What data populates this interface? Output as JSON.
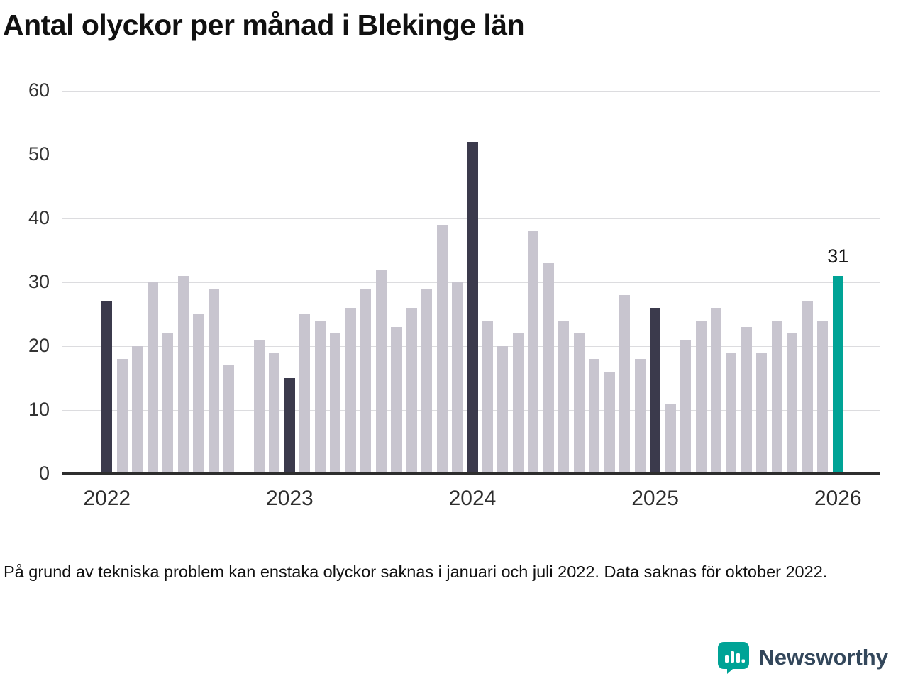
{
  "title": "Antal olyckor per månad i Blekinge län",
  "footnote": "På grund av tekniska problem kan enstaka olyckor saknas i januari och juli 2022. Data saknas för oktober 2022.",
  "branding": {
    "name": "Newsworthy",
    "brand_color": "#00a396",
    "wordmark_color": "#33475b"
  },
  "chart_data": {
    "type": "bar",
    "title": "Antal olyckor per månad i Blekinge län",
    "xlabel": "",
    "ylabel": "",
    "ylim": [
      0,
      60
    ],
    "yticks": [
      0,
      10,
      20,
      30,
      40,
      50,
      60
    ],
    "grid": true,
    "legend": "none",
    "colors": {
      "default": "#c8c5cf",
      "january": "#3b3a4c",
      "highlight": "#00a396"
    },
    "annotation": {
      "text": "31",
      "slot": 48
    },
    "year_labels": [
      {
        "label": "2022",
        "slot": 0
      },
      {
        "label": "2023",
        "slot": 12
      },
      {
        "label": "2024",
        "slot": 24
      },
      {
        "label": "2025",
        "slot": 36
      },
      {
        "label": "2026",
        "slot": 48
      }
    ],
    "months": [
      {
        "month": "2022-01",
        "value": 27,
        "type": "january"
      },
      {
        "month": "2022-02",
        "value": 18,
        "type": "default"
      },
      {
        "month": "2022-03",
        "value": 20,
        "type": "default"
      },
      {
        "month": "2022-04",
        "value": 30,
        "type": "default"
      },
      {
        "month": "2022-05",
        "value": 22,
        "type": "default"
      },
      {
        "month": "2022-06",
        "value": 31,
        "type": "default"
      },
      {
        "month": "2022-07",
        "value": 25,
        "type": "default"
      },
      {
        "month": "2022-08",
        "value": 29,
        "type": "default"
      },
      {
        "month": "2022-09",
        "value": 17,
        "type": "default"
      },
      {
        "month": "2022-10",
        "value": null,
        "type": "missing"
      },
      {
        "month": "2022-11",
        "value": 21,
        "type": "default"
      },
      {
        "month": "2022-12",
        "value": 19,
        "type": "default"
      },
      {
        "month": "2023-01",
        "value": 15,
        "type": "january"
      },
      {
        "month": "2023-02",
        "value": 25,
        "type": "default"
      },
      {
        "month": "2023-03",
        "value": 24,
        "type": "default"
      },
      {
        "month": "2023-04",
        "value": 22,
        "type": "default"
      },
      {
        "month": "2023-05",
        "value": 26,
        "type": "default"
      },
      {
        "month": "2023-06",
        "value": 29,
        "type": "default"
      },
      {
        "month": "2023-07",
        "value": 32,
        "type": "default"
      },
      {
        "month": "2023-08",
        "value": 23,
        "type": "default"
      },
      {
        "month": "2023-09",
        "value": 26,
        "type": "default"
      },
      {
        "month": "2023-10",
        "value": 29,
        "type": "default"
      },
      {
        "month": "2023-11",
        "value": 39,
        "type": "default"
      },
      {
        "month": "2023-12",
        "value": 30,
        "type": "default"
      },
      {
        "month": "2024-01",
        "value": 52,
        "type": "january"
      },
      {
        "month": "2024-02",
        "value": 24,
        "type": "default"
      },
      {
        "month": "2024-03",
        "value": 20,
        "type": "default"
      },
      {
        "month": "2024-04",
        "value": 22,
        "type": "default"
      },
      {
        "month": "2024-05",
        "value": 38,
        "type": "default"
      },
      {
        "month": "2024-06",
        "value": 33,
        "type": "default"
      },
      {
        "month": "2024-07",
        "value": 24,
        "type": "default"
      },
      {
        "month": "2024-08",
        "value": 22,
        "type": "default"
      },
      {
        "month": "2024-09",
        "value": 18,
        "type": "default"
      },
      {
        "month": "2024-10",
        "value": 16,
        "type": "default"
      },
      {
        "month": "2024-11",
        "value": 28,
        "type": "default"
      },
      {
        "month": "2024-12",
        "value": 18,
        "type": "default"
      },
      {
        "month": "2025-01",
        "value": 26,
        "type": "january"
      },
      {
        "month": "2025-02",
        "value": 11,
        "type": "default"
      },
      {
        "month": "2025-03",
        "value": 21,
        "type": "default"
      },
      {
        "month": "2025-04",
        "value": 24,
        "type": "default"
      },
      {
        "month": "2025-05",
        "value": 26,
        "type": "default"
      },
      {
        "month": "2025-06",
        "value": 19,
        "type": "default"
      },
      {
        "month": "2025-07",
        "value": 23,
        "type": "default"
      },
      {
        "month": "2025-08",
        "value": 19,
        "type": "default"
      },
      {
        "month": "2025-09",
        "value": 24,
        "type": "default"
      },
      {
        "month": "2025-10",
        "value": 22,
        "type": "default"
      },
      {
        "month": "2025-11",
        "value": 27,
        "type": "default"
      },
      {
        "month": "2025-12",
        "value": 24,
        "type": "default"
      },
      {
        "month": "2026-01",
        "value": 31,
        "type": "highlight"
      }
    ]
  }
}
